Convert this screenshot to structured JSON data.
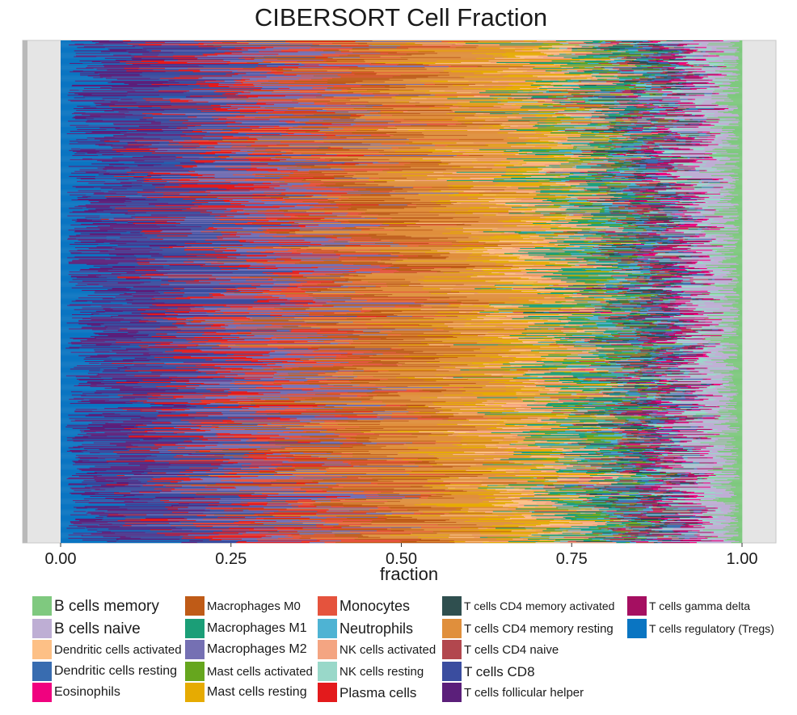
{
  "chart_data": {
    "type": "bar",
    "orientation": "horizontal",
    "stacked": true,
    "title": "CIBERSORT Cell Fraction",
    "xlabel": "fraction",
    "ylabel": "",
    "xlim": [
      0,
      1
    ],
    "x_ticks": [
      "0.00",
      "0.25",
      "0.50",
      "0.75",
      "1.00"
    ],
    "grid": false,
    "legend_position": "bottom",
    "sample_count": 600,
    "series": [
      {
        "name": "B cells memory",
        "color": "#7fc97f",
        "mean_fraction": 0.02
      },
      {
        "name": "B cells naive",
        "color": "#beaed4",
        "mean_fraction": 0.04
      },
      {
        "name": "Dendritic cells activated",
        "color": "#fdc086",
        "mean_fraction": 0.03
      },
      {
        "name": "Dendritic cells resting",
        "color": "#386cb0",
        "mean_fraction": 0.02
      },
      {
        "name": "Eosinophils",
        "color": "#f0027f",
        "mean_fraction": 0.01
      },
      {
        "name": "Macrophages M0",
        "color": "#bf5b17",
        "mean_fraction": 0.08
      },
      {
        "name": "Macrophages M1",
        "color": "#1b9e77",
        "mean_fraction": 0.04
      },
      {
        "name": "Macrophages M2",
        "color": "#7570b3",
        "mean_fraction": 0.08
      },
      {
        "name": "Mast cells activated",
        "color": "#66a61e",
        "mean_fraction": 0.02
      },
      {
        "name": "Mast cells resting",
        "color": "#e6ab02",
        "mean_fraction": 0.05
      },
      {
        "name": "Monocytes",
        "color": "#e5533d",
        "mean_fraction": 0.06
      },
      {
        "name": "Neutrophils",
        "color": "#4eb3d3",
        "mean_fraction": 0.02
      },
      {
        "name": "NK cells activated",
        "color": "#f4a582",
        "mean_fraction": 0.03
      },
      {
        "name": "NK cells resting",
        "color": "#99d8c9",
        "mean_fraction": 0.02
      },
      {
        "name": "Plasma cells",
        "color": "#e31a1c",
        "mean_fraction": 0.05
      },
      {
        "name": "T cells CD4 memory activated",
        "color": "#2f4f4f",
        "mean_fraction": 0.02
      },
      {
        "name": "T cells CD4 memory resting",
        "color": "#e08f3c",
        "mean_fraction": 0.15
      },
      {
        "name": "T cells CD4 naive",
        "color": "#b2474e",
        "mean_fraction": 0.02
      },
      {
        "name": "T cells CD8",
        "color": "#3a4d9f",
        "mean_fraction": 0.1
      },
      {
        "name": "T cells follicular helper",
        "color": "#5b1f7a",
        "mean_fraction": 0.06
      },
      {
        "name": "T cells gamma delta",
        "color": "#a50f61",
        "mean_fraction": 0.02
      },
      {
        "name": "T cells regulatory (Tregs)",
        "color": "#0a75c2",
        "mean_fraction": 0.05
      }
    ]
  }
}
